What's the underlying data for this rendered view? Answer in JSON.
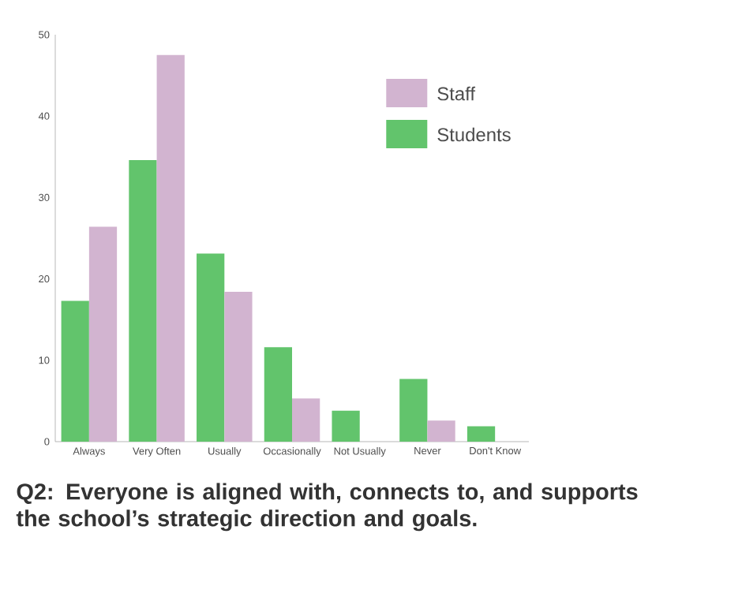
{
  "chart_data": {
    "type": "bar",
    "title": "Q2: Everyone is aligned with, connects to, and supports the school’s strategic direction and goals.",
    "categories": [
      "Always",
      "Very Often",
      "Usually",
      "Occasionally",
      "Not Usually",
      "Never",
      "Don't Know"
    ],
    "series": [
      {
        "name": "Students",
        "color": "#62c46c",
        "values": [
          17.3,
          34.6,
          23.1,
          11.6,
          3.8,
          7.7,
          1.9
        ]
      },
      {
        "name": "Staff",
        "color": "#d2b4d0",
        "values": [
          26.4,
          47.5,
          18.4,
          5.3,
          null,
          2.6,
          null
        ]
      }
    ],
    "ylim": [
      0,
      50
    ],
    "yticks": [
      0,
      10,
      20,
      30,
      40,
      50
    ],
    "legend": "top right",
    "grid": false
  }
}
